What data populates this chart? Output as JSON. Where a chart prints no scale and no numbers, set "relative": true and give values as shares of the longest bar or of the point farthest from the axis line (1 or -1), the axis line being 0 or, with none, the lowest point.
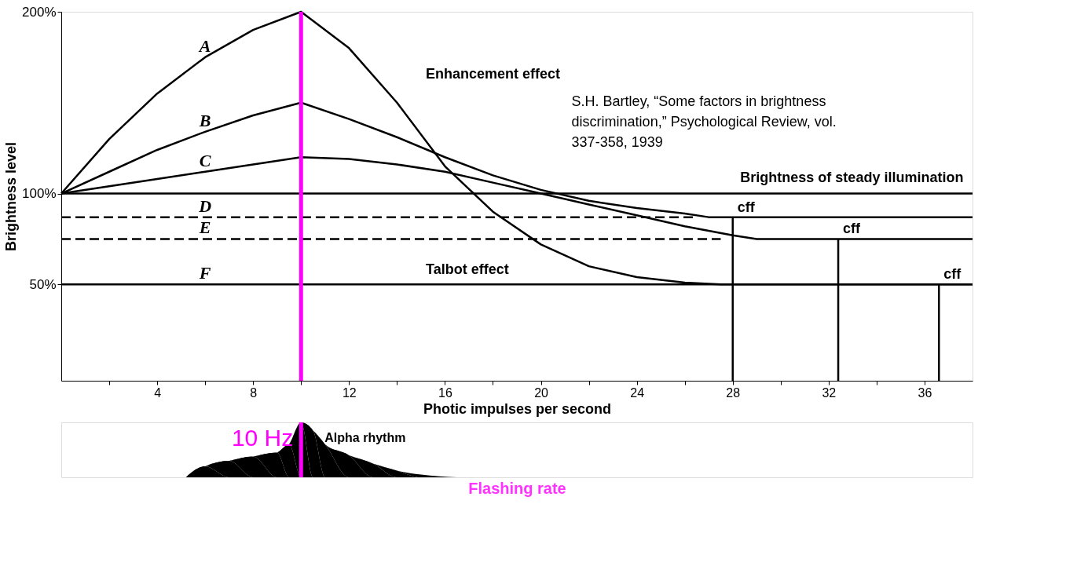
{
  "chart_data": [
    {
      "type": "line",
      "xlabel": "Photic impulses per second",
      "ylabel": "Brightness level",
      "xlim": [
        0,
        38
      ],
      "ylim": [
        -3,
        200
      ],
      "xticks": [
        {
          "value": 2,
          "label": null
        },
        4,
        {
          "value": 6,
          "label": null
        },
        8,
        {
          "value": 10,
          "label": null
        },
        12,
        {
          "value": 14,
          "label": null
        },
        16,
        {
          "value": 18,
          "label": null
        },
        20,
        {
          "value": 22,
          "label": null
        },
        24,
        {
          "value": 26,
          "label": null
        },
        28,
        {
          "value": 30,
          "label": null
        },
        32,
        {
          "value": 34,
          "label": null
        },
        36
      ],
      "yticks": [
        {
          "value": 200,
          "label": "200%"
        },
        {
          "value": 100,
          "label": "100%"
        },
        {
          "value": 50,
          "label": "50%"
        }
      ],
      "grid": false,
      "legend": false,
      "marker": "none",
      "series": [
        {
          "name": "A",
          "color": "#000000",
          "x": [
            0,
            2,
            4,
            6,
            8,
            10,
            12,
            14,
            16,
            18,
            20,
            22,
            24,
            26,
            27.5,
            38
          ],
          "values": [
            100,
            130,
            155,
            175,
            190,
            200,
            180,
            150,
            115,
            90,
            72,
            60,
            54,
            51,
            50,
            50
          ]
        },
        {
          "name": "B",
          "color": "#000000",
          "x": [
            0,
            2,
            4,
            6,
            8,
            10,
            12,
            14,
            16,
            18,
            20,
            22,
            24,
            26,
            27,
            38
          ],
          "values": [
            100,
            112,
            124,
            134,
            143,
            150,
            141,
            131,
            120,
            110,
            102,
            96,
            92,
            89,
            87,
            87
          ]
        },
        {
          "name": "C",
          "color": "#000000",
          "x": [
            0,
            2,
            4,
            6,
            8,
            10,
            12,
            14,
            16,
            18,
            20,
            22,
            24,
            26,
            28,
            29,
            38
          ],
          "values": [
            100,
            104,
            108,
            112,
            116,
            120,
            119,
            116,
            112,
            106,
            100,
            94,
            88,
            82,
            77,
            75,
            75
          ]
        },
        {
          "name": "D",
          "color": "#000000",
          "line_style": "dashed",
          "x": [
            0,
            2,
            4,
            6,
            26.5
          ],
          "values": [
            87,
            87,
            87,
            87,
            87
          ]
        },
        {
          "name": "E",
          "color": "#000000",
          "line_style": "dashed",
          "x": [
            0,
            2,
            4,
            6,
            27.5
          ],
          "values": [
            75,
            75,
            75,
            75,
            75
          ]
        },
        {
          "name": "F",
          "color": "#000000",
          "x": [
            0,
            2,
            4,
            6,
            38
          ],
          "values": [
            50,
            50,
            50,
            50,
            50
          ]
        },
        {
          "color": "#000000",
          "x": [
            0,
            38
          ],
          "values": [
            100,
            100
          ]
        },
        {
          "color": "#000000",
          "x": [
            28,
            28
          ],
          "values": [
            -3,
            87
          ]
        },
        {
          "color": "#000000",
          "x": [
            32.4,
            32.4
          ],
          "values": [
            -3,
            75
          ]
        },
        {
          "color": "#000000",
          "x": [
            36.6,
            36.6
          ],
          "values": [
            -3,
            50
          ]
        }
      ],
      "ref_lines": [
        {
          "axis": "x",
          "value": 10,
          "color": "#ff00ff"
        }
      ],
      "annotations": [
        "Enhancement effect",
        {
          "text": "cff",
          "x": 28,
          "y": 87
        },
        {
          "text": "cff",
          "x": 32.4,
          "y": 75
        },
        {
          "text": "cff",
          "x": 36.6,
          "y": 50
        },
        "Talbot effect",
        "Brightness of steady illumination",
        "S.H. Bartley, “Some factors in brightness discrimination,” Psychological Review, vol. 337-358, 1939"
      ]
    },
    {
      "type": "area",
      "relative": true,
      "xlabel": "Flashing rate",
      "xlim": [
        0,
        38
      ],
      "legend": false,
      "series": [
        {
          "name": "Alpha rhythm",
          "color": "#000000",
          "x": [
            5.2,
            6,
            7,
            8,
            9,
            9.5,
            10,
            10.5,
            11,
            12,
            13,
            14,
            15,
            16.5
          ],
          "values": [
            0,
            0.2,
            0.3,
            0.38,
            0.45,
            0.6,
            1.0,
            0.85,
            0.6,
            0.4,
            0.25,
            0.12,
            0.05,
            0
          ]
        }
      ],
      "ref_lines": [
        {
          "axis": "x",
          "value": 10,
          "label": "10 Hz",
          "color": "#ff00ff"
        }
      ]
    }
  ]
}
